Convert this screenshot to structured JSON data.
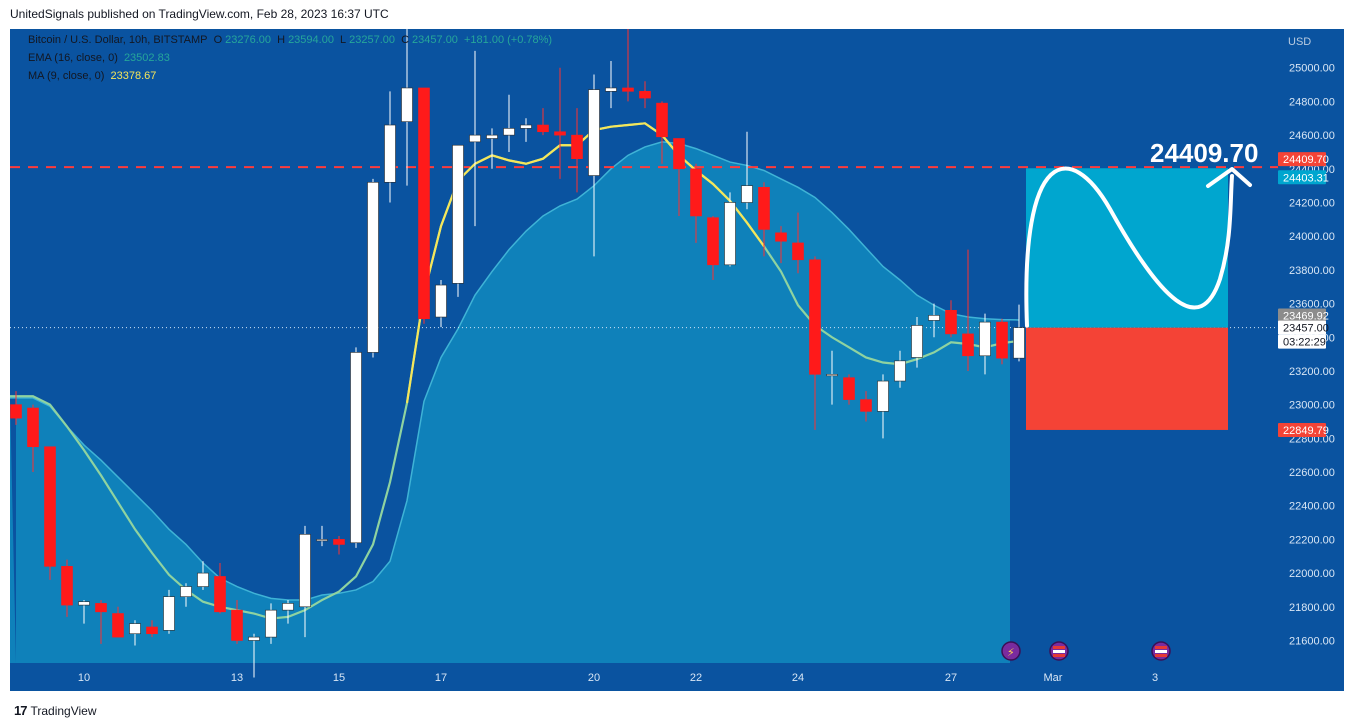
{
  "header": {
    "published_by": "UnitedSignals published on TradingView.com, Feb 28, 2023 16:37 UTC"
  },
  "footer": {
    "brand": "TradingView",
    "logo_text": "17"
  },
  "legend": {
    "symbol": "Bitcoin / U.S. Dollar, 10h, BITSTAMP",
    "o_label": "O",
    "o": "23276.00",
    "h_label": "H",
    "h": "23594.00",
    "l_label": "L",
    "l": "23257.00",
    "c_label": "C",
    "c": "23457.00",
    "change": "+181.00 (+0.78%)",
    "ema_label": "EMA (16, close, 0)",
    "ema_value": "23502.83",
    "ma_label": "MA (9, close, 0)",
    "ma_value": "23378.67"
  },
  "colors": {
    "background": "#0a53a0",
    "up": "#ffffff",
    "down": "#ff1a1a",
    "ema_fill": "#0f86bd",
    "ma_line": "#f5e65a",
    "ema_line": "#8fd3a0",
    "target_zone": "#00a6cf",
    "stop_zone": "#f44336",
    "target_line": "#ff3b3b"
  },
  "chart_data": {
    "type": "candlestick",
    "currency": "USD",
    "y_ticks": [
      21400,
      21600,
      21800,
      22000,
      22200,
      22400,
      22600,
      22800,
      23000,
      23200,
      23400,
      23600,
      23800,
      24000,
      24200,
      24400,
      24600,
      24800,
      25000
    ],
    "y_tick_labels": [
      "21400.00",
      "21600.00",
      "21800.00",
      "22000.00",
      "22200.00",
      "22400.00",
      "22600.00",
      "22800.00",
      "23000.00",
      "23200.00",
      "23400.00",
      "23600.00",
      "23800.00",
      "24000.00",
      "24200.00",
      "24400.00",
      "24600.00",
      "24800.00",
      "25000.00"
    ],
    "ylim": [
      21300,
      25230
    ],
    "x_labels": [
      {
        "label": "10",
        "index": 4
      },
      {
        "label": "13",
        "index": 13
      },
      {
        "label": "15",
        "index": 19
      },
      {
        "label": "17",
        "index": 25
      },
      {
        "label": "20",
        "index": 34
      },
      {
        "label": "22",
        "index": 40
      },
      {
        "label": "24",
        "index": 46
      },
      {
        "label": "27",
        "index": 55
      },
      {
        "label": "Mar",
        "index": 61
      },
      {
        "label": "3",
        "index": 67
      }
    ],
    "candles": [
      [
        23000,
        23080,
        22880,
        22920
      ],
      [
        22980,
        23000,
        22600,
        22750
      ],
      [
        22750,
        22750,
        21960,
        22040
      ],
      [
        22040,
        22080,
        21740,
        21810
      ],
      [
        21810,
        21840,
        21700,
        21830
      ],
      [
        21820,
        21840,
        21580,
        21770
      ],
      [
        21760,
        21800,
        21640,
        21620
      ],
      [
        21640,
        21720,
        21570,
        21700
      ],
      [
        21680,
        21720,
        21620,
        21640
      ],
      [
        21660,
        21900,
        21640,
        21860
      ],
      [
        21860,
        21940,
        21800,
        21920
      ],
      [
        21920,
        22070,
        21900,
        22000
      ],
      [
        21980,
        22060,
        21760,
        21770
      ],
      [
        21780,
        21840,
        21580,
        21600
      ],
      [
        21600,
        21640,
        21380,
        21620
      ],
      [
        21620,
        21820,
        21580,
        21780
      ],
      [
        21780,
        21840,
        21700,
        21820
      ],
      [
        21800,
        22280,
        21620,
        22230
      ],
      [
        22200,
        22280,
        22160,
        22200
      ],
      [
        22200,
        22220,
        22110,
        22170
      ],
      [
        22180,
        23340,
        22150,
        23310
      ],
      [
        23310,
        24340,
        23280,
        24320
      ],
      [
        24320,
        24860,
        24200,
        24660
      ],
      [
        24680,
        25600,
        24300,
        24880
      ],
      [
        24880,
        24880,
        23480,
        23510
      ],
      [
        23520,
        23740,
        23460,
        23710
      ],
      [
        23720,
        24540,
        23640,
        24540
      ],
      [
        24560,
        25100,
        24060,
        24600
      ],
      [
        24580,
        24640,
        24400,
        24600
      ],
      [
        24600,
        24840,
        24500,
        24640
      ],
      [
        24640,
        24700,
        24560,
        24660
      ],
      [
        24660,
        24760,
        24600,
        24620
      ],
      [
        24620,
        25000,
        24340,
        24600
      ],
      [
        24600,
        24760,
        24260,
        24460
      ],
      [
        24360,
        24960,
        23880,
        24870
      ],
      [
        24860,
        25040,
        24760,
        24880
      ],
      [
        24880,
        25260,
        24800,
        24860
      ],
      [
        24860,
        24920,
        24760,
        24820
      ],
      [
        24790,
        24800,
        24430,
        24590
      ],
      [
        24580,
        24580,
        24120,
        24400
      ],
      [
        24400,
        24430,
        23960,
        24120
      ],
      [
        24110,
        24120,
        23740,
        23830
      ],
      [
        23830,
        24260,
        23820,
        24200
      ],
      [
        24200,
        24620,
        24160,
        24300
      ],
      [
        24290,
        24320,
        23880,
        24040
      ],
      [
        24020,
        24060,
        23840,
        23970
      ],
      [
        23960,
        24140,
        23780,
        23860
      ],
      [
        23860,
        23880,
        22850,
        23180
      ],
      [
        23180,
        23320,
        23000,
        23180
      ],
      [
        23160,
        23180,
        23000,
        23030
      ],
      [
        23030,
        23080,
        22900,
        22960
      ],
      [
        22960,
        23180,
        22800,
        23140
      ],
      [
        23140,
        23320,
        23100,
        23260
      ],
      [
        23280,
        23520,
        23220,
        23470
      ],
      [
        23500,
        23600,
        23400,
        23530
      ],
      [
        23560,
        23620,
        23400,
        23420
      ],
      [
        23420,
        23920,
        23200,
        23290
      ],
      [
        23290,
        23540,
        23180,
        23490
      ],
      [
        23490,
        23510,
        23240,
        23276
      ],
      [
        23276,
        23594,
        23257,
        23457
      ]
    ],
    "ema_16": [
      23040,
      23040,
      22990,
      22870,
      22760,
      22670,
      22570,
      22470,
      22370,
      22260,
      22170,
      22060,
      21970,
      21920,
      21880,
      21850,
      21840,
      21840,
      21870,
      21880,
      21900,
      21950,
      22070,
      22430,
      23020,
      23280,
      23450,
      23650,
      23790,
      23920,
      24030,
      24120,
      24180,
      24220,
      24300,
      24400,
      24480,
      24530,
      24560,
      24550,
      24520,
      24480,
      24440,
      24420,
      24390,
      24340,
      24290,
      24230,
      24140,
      24040,
      23930,
      23820,
      23740,
      23650,
      23590,
      23540,
      23520,
      23510,
      23505,
      23502.83
    ],
    "ma_9": [
      23050,
      23050,
      23000,
      22870,
      22730,
      22580,
      22420,
      22260,
      22120,
      21990,
      21900,
      21830,
      21800,
      21780,
      21760,
      21730,
      21740,
      21780,
      21840,
      21890,
      21980,
      22170,
      22540,
      23010,
      23660,
      24060,
      24330,
      24430,
      24480,
      24450,
      24430,
      24460,
      24540,
      24540,
      24630,
      24650,
      24660,
      24670,
      24600,
      24480,
      24390,
      24310,
      24210,
      24080,
      23940,
      23790,
      23590,
      23470,
      23400,
      23340,
      23280,
      23250,
      23240,
      23270,
      23310,
      23370,
      23360,
      23340,
      23365,
      23378.67
    ],
    "target_line": 24409.7,
    "target_text": "24409.70",
    "price_labels": [
      {
        "text": "24409.70",
        "value": 24409.7,
        "color": "#f44336",
        "textcolor": "#ffffff"
      },
      {
        "text": "24403.31",
        "value": 24403.31,
        "color": "#00a6cf",
        "textcolor": "#ffffff"
      },
      {
        "text": "23469.92",
        "value": 23469.92,
        "color": "#8c8c8c",
        "textcolor": "#ffffff"
      },
      {
        "text": "23457.00",
        "value": 23457.0,
        "color": "#ffffff",
        "textcolor": "#131722"
      },
      {
        "text": "03:22:29",
        "value": 23457.0,
        "color": "#ffffff",
        "textcolor": "#131722"
      },
      {
        "text": "22849.79",
        "value": 22849.79,
        "color": "#f44336",
        "textcolor": "#ffffff"
      }
    ],
    "position": {
      "entry": 23457.0,
      "target": 24403.31,
      "stop": 22849.79
    }
  }
}
